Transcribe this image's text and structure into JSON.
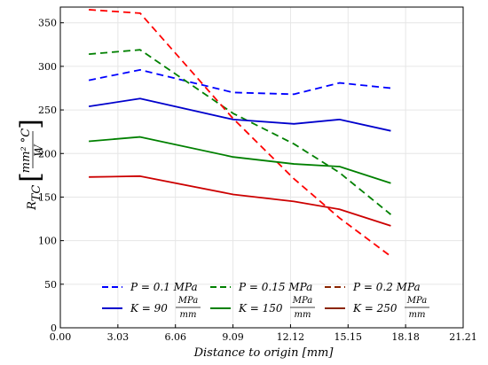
{
  "chart_data": {
    "type": "line",
    "xlabel": "Distance to origin [mm]",
    "ylabel": {
      "symbol": "R",
      "subscript": "TC",
      "unit_numerator": "mm² °C",
      "unit_denominator": "W"
    },
    "xlim": [
      0,
      21.21
    ],
    "ylim": [
      0,
      368
    ],
    "x_ticks": [
      "0.00",
      "3.03",
      "6.06",
      "9.09",
      "12.12",
      "15.15",
      "18.18",
      "21.21"
    ],
    "y_ticks": [
      "0",
      "50",
      "100",
      "150",
      "200",
      "250",
      "300",
      "350"
    ],
    "grid": true,
    "legend_position": "bottom-center",
    "series": [
      {
        "name": "P = 0.1 MPa",
        "color": "#0000ff",
        "dashed": true,
        "x": [
          1.5,
          4.2,
          9.1,
          12.3,
          14.7,
          17.4
        ],
        "y": [
          284,
          296,
          270,
          268,
          281,
          275
        ]
      },
      {
        "name": "P = 0.15 MPa",
        "color": "#008000",
        "dashed": true,
        "x": [
          1.5,
          4.2,
          9.1,
          12.3,
          14.7,
          17.4
        ],
        "y": [
          314,
          319,
          246,
          211,
          178,
          130
        ]
      },
      {
        "name": "P = 0.2 MPa",
        "color": "#ff0000",
        "dashed": true,
        "x": [
          1.5,
          4.2,
          9.1,
          12.3,
          14.7,
          17.4
        ],
        "y": [
          365,
          361,
          240,
          171,
          126,
          82
        ]
      },
      {
        "name": "K = 90 MPa/mm",
        "color": "#0000cc",
        "dashed": false,
        "x": [
          1.5,
          4.2,
          9.1,
          12.3,
          14.7,
          17.4
        ],
        "y": [
          254,
          263,
          239,
          234,
          239,
          226
        ]
      },
      {
        "name": "K = 150 MPa/mm",
        "color": "#008000",
        "dashed": false,
        "x": [
          1.5,
          4.2,
          9.1,
          12.3,
          14.7,
          17.4
        ],
        "y": [
          214,
          219,
          196,
          188,
          185,
          166
        ]
      },
      {
        "name": "K = 250 MPa/mm",
        "color": "#cc0000",
        "dashed": false,
        "x": [
          1.5,
          4.2,
          9.1,
          12.3,
          14.7,
          17.4
        ],
        "y": [
          173,
          174,
          153,
          145,
          136,
          117
        ]
      }
    ],
    "legend": {
      "row1": [
        {
          "prefix": "P = 0.1 ",
          "unit": "MPa"
        },
        {
          "prefix": "P = 0.15 ",
          "unit": "MPa"
        },
        {
          "prefix": "P = 0.2 ",
          "unit": "MPa"
        }
      ],
      "row2": [
        {
          "prefix": "K = 90 ",
          "num": "MPa",
          "den": "mm"
        },
        {
          "prefix": "K = 150 ",
          "num": "MPa",
          "den": "mm"
        },
        {
          "prefix": "K = 250 ",
          "num": "MPa",
          "den": "mm"
        }
      ]
    }
  }
}
